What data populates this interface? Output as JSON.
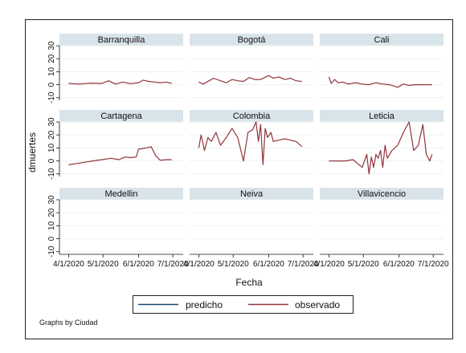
{
  "chart_data": {
    "type": "line",
    "facet_by": "Ciudad",
    "note": "Graphs by Ciudad",
    "xlabel": "Fecha",
    "ylabel": "dmuertes",
    "x_ticks": [
      "4/1/2020",
      "5/1/2020",
      "6/1/2020",
      "7/1/2020"
    ],
    "y_ticks": [
      "-10",
      "0",
      "10",
      "20",
      "30"
    ],
    "ylim": [
      -12,
      30
    ],
    "xlim": [
      "2020-03-24",
      "2020-07-10"
    ],
    "legend": {
      "position": "bottom",
      "entries": [
        "predicho",
        "observado"
      ]
    },
    "colors": {
      "predicho": "#1a476f",
      "observado": "#90353b"
    },
    "panels": [
      {
        "name": "Barranquilla",
        "series": [
          {
            "name": "observado",
            "x": [
              "2020-04-01",
              "2020-04-10",
              "2020-04-20",
              "2020-04-30",
              "2020-05-06",
              "2020-05-12",
              "2020-05-18",
              "2020-05-25",
              "2020-06-01",
              "2020-06-05",
              "2020-06-10",
              "2020-06-15",
              "2020-06-20",
              "2020-06-25",
              "2020-06-30"
            ],
            "y": [
              1.0,
              0.5,
              1.2,
              1.0,
              3.0,
              0.5,
              2.0,
              0.8,
              1.5,
              3.5,
              2.5,
              2.0,
              1.5,
              2.0,
              1.0
            ]
          }
        ]
      },
      {
        "name": "Bogotá",
        "series": [
          {
            "name": "observado",
            "x": [
              "2020-04-01",
              "2020-04-05",
              "2020-04-10",
              "2020-04-14",
              "2020-04-20",
              "2020-04-25",
              "2020-04-30",
              "2020-05-05",
              "2020-05-10",
              "2020-05-15",
              "2020-05-20",
              "2020-05-25",
              "2020-06-01",
              "2020-06-05",
              "2020-06-10",
              "2020-06-15",
              "2020-06-20",
              "2020-06-25",
              "2020-06-30"
            ],
            "y": [
              2.0,
              0.5,
              3.0,
              5.0,
              3.0,
              1.5,
              4.0,
              3.0,
              2.5,
              5.5,
              4.0,
              4.0,
              7.0,
              5.0,
              6.0,
              4.0,
              5.0,
              3.0,
              2.5
            ]
          }
        ]
      },
      {
        "name": "Cali",
        "series": [
          {
            "name": "observado",
            "x": [
              "2020-04-01",
              "2020-04-03",
              "2020-04-06",
              "2020-04-09",
              "2020-04-13",
              "2020-04-18",
              "2020-04-24",
              "2020-04-30",
              "2020-05-06",
              "2020-05-12",
              "2020-05-18",
              "2020-05-24",
              "2020-05-31",
              "2020-06-05",
              "2020-06-10",
              "2020-06-15",
              "2020-06-20",
              "2020-06-30"
            ],
            "y": [
              6.0,
              1.0,
              4.0,
              1.5,
              2.0,
              0.5,
              1.5,
              0.5,
              0.0,
              1.5,
              0.5,
              0.0,
              -2.0,
              0.5,
              -0.5,
              0.0,
              0.0,
              0.0
            ]
          }
        ]
      },
      {
        "name": "Cartagena",
        "series": [
          {
            "name": "observado",
            "x": [
              "2020-04-01",
              "2020-04-08",
              "2020-04-15",
              "2020-04-22",
              "2020-04-30",
              "2020-05-08",
              "2020-05-15",
              "2020-05-20",
              "2020-05-25",
              "2020-05-30",
              "2020-06-01",
              "2020-06-08",
              "2020-06-12",
              "2020-06-16",
              "2020-06-20",
              "2020-06-25",
              "2020-06-30"
            ],
            "y": [
              -3.0,
              -2.0,
              -1.0,
              0.0,
              1.0,
              2.0,
              1.0,
              3.0,
              2.5,
              3.0,
              9.0,
              10.0,
              11.0,
              4.0,
              0.5,
              1.0,
              1.0
            ]
          }
        ]
      },
      {
        "name": "Colombia",
        "series": [
          {
            "name": "observado",
            "x": [
              "2020-04-01",
              "2020-04-03",
              "2020-04-06",
              "2020-04-09",
              "2020-04-12",
              "2020-04-16",
              "2020-04-20",
              "2020-04-25",
              "2020-04-30",
              "2020-05-05",
              "2020-05-10",
              "2020-05-14",
              "2020-05-18",
              "2020-05-21",
              "2020-05-23",
              "2020-05-25",
              "2020-05-27",
              "2020-05-29",
              "2020-05-31",
              "2020-06-03",
              "2020-06-05",
              "2020-06-10",
              "2020-06-15",
              "2020-06-20",
              "2020-06-25",
              "2020-06-30"
            ],
            "y": [
              10.0,
              20.0,
              8.0,
              18.0,
              15.0,
              22.0,
              12.0,
              18.0,
              25.0,
              18.0,
              0.0,
              22.0,
              24.0,
              30.0,
              15.0,
              28.0,
              -3.0,
              25.0,
              18.0,
              22.0,
              15.0,
              16.0,
              17.0,
              16.0,
              15.0,
              11.0
            ]
          }
        ]
      },
      {
        "name": "Leticia",
        "series": [
          {
            "name": "observado",
            "x": [
              "2020-04-01",
              "2020-04-08",
              "2020-04-15",
              "2020-04-22",
              "2020-04-30",
              "2020-05-04",
              "2020-05-06",
              "2020-05-08",
              "2020-05-10",
              "2020-05-12",
              "2020-05-14",
              "2020-05-16",
              "2020-05-18",
              "2020-05-20",
              "2020-05-22",
              "2020-05-26",
              "2020-05-31",
              "2020-06-05",
              "2020-06-10",
              "2020-06-14",
              "2020-06-18",
              "2020-06-22",
              "2020-06-25",
              "2020-06-28",
              "2020-06-30"
            ],
            "y": [
              0.0,
              0.0,
              0.0,
              1.0,
              -5.0,
              5.0,
              -10.0,
              3.0,
              -5.0,
              5.0,
              2.0,
              8.0,
              -5.0,
              12.0,
              2.0,
              8.0,
              12.0,
              22.0,
              30.0,
              8.0,
              12.0,
              28.0,
              5.0,
              0.0,
              5.0
            ]
          }
        ]
      },
      {
        "name": "Medellin",
        "series": []
      },
      {
        "name": "Neiva",
        "series": []
      },
      {
        "name": "Villavicencio",
        "series": []
      }
    ]
  }
}
